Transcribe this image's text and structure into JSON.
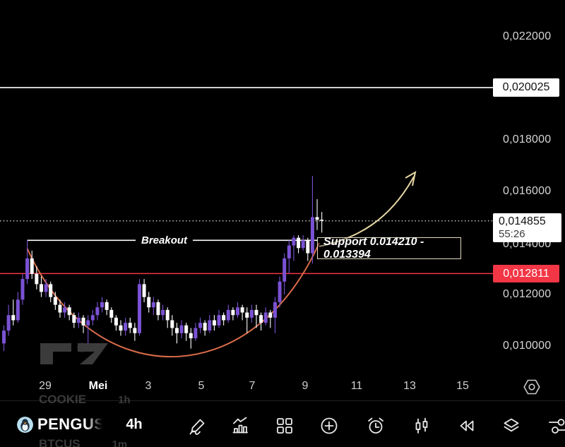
{
  "chart_data": {
    "type": "candlestick",
    "symbol": "PENGU",
    "timeframe": "4h",
    "y_axis": {
      "ticks": [
        "0,022000",
        "0,018000",
        "0,016000",
        "0,014000",
        "0,012000",
        "0,010000"
      ],
      "visible_range": [
        0.0098,
        0.0225
      ]
    },
    "x_axis": {
      "ticks": [
        "29",
        "Mei",
        "3",
        "5",
        "7",
        "9",
        "11",
        "13",
        "15"
      ],
      "bold_tick": "Mei"
    },
    "candles": [
      [
        0.0101,
        0.0108,
        0.0098,
        0.0106
      ],
      [
        0.0106,
        0.0116,
        0.0104,
        0.0112
      ],
      [
        0.0112,
        0.0118,
        0.0108,
        0.011
      ],
      [
        0.011,
        0.0121,
        0.0109,
        0.0118
      ],
      [
        0.0118,
        0.0128,
        0.0116,
        0.0126
      ],
      [
        0.0126,
        0.0141,
        0.0124,
        0.0134
      ],
      [
        0.0134,
        0.0137,
        0.0126,
        0.0128
      ],
      [
        0.0128,
        0.0131,
        0.0122,
        0.0124
      ],
      [
        0.0124,
        0.0127,
        0.0119,
        0.0121
      ],
      [
        0.0121,
        0.0126,
        0.0119,
        0.0124
      ],
      [
        0.0124,
        0.0125,
        0.0117,
        0.0119
      ],
      [
        0.0119,
        0.0121,
        0.0114,
        0.0116
      ],
      [
        0.0116,
        0.0118,
        0.0111,
        0.0113
      ],
      [
        0.0113,
        0.0117,
        0.0111,
        0.0115
      ],
      [
        0.0115,
        0.0116,
        0.011,
        0.0112
      ],
      [
        0.0112,
        0.0113,
        0.0107,
        0.0109
      ],
      [
        0.0109,
        0.0113,
        0.0107,
        0.0111
      ],
      [
        0.0111,
        0.0112,
        0.0105,
        0.0108
      ],
      [
        0.0108,
        0.0112,
        0.01,
        0.011
      ],
      [
        0.011,
        0.0114,
        0.0108,
        0.0112
      ],
      [
        0.0112,
        0.0117,
        0.011,
        0.0115
      ],
      [
        0.0115,
        0.0119,
        0.0113,
        0.0117
      ],
      [
        0.0117,
        0.0118,
        0.0112,
        0.0114
      ],
      [
        0.0114,
        0.0115,
        0.0109,
        0.0111
      ],
      [
        0.0111,
        0.0112,
        0.0106,
        0.0108
      ],
      [
        0.0108,
        0.011,
        0.0104,
        0.0106
      ],
      [
        0.0106,
        0.0111,
        0.0104,
        0.0109
      ],
      [
        0.0109,
        0.0111,
        0.0105,
        0.0107
      ],
      [
        0.0107,
        0.0109,
        0.0102,
        0.0105
      ],
      [
        0.0105,
        0.0126,
        0.0104,
        0.0124
      ],
      [
        0.0124,
        0.0126,
        0.0117,
        0.0119
      ],
      [
        0.0119,
        0.0121,
        0.0113,
        0.0115
      ],
      [
        0.0115,
        0.0119,
        0.0112,
        0.0117
      ],
      [
        0.0117,
        0.0118,
        0.011,
        0.0112
      ],
      [
        0.0112,
        0.0116,
        0.011,
        0.0114
      ],
      [
        0.0114,
        0.0115,
        0.0107,
        0.011
      ],
      [
        0.011,
        0.0112,
        0.0104,
        0.0107
      ],
      [
        0.0107,
        0.0109,
        0.0101,
        0.0105
      ],
      [
        0.0105,
        0.011,
        0.0103,
        0.0108
      ],
      [
        0.0108,
        0.0109,
        0.0102,
        0.0105
      ],
      [
        0.0105,
        0.0107,
        0.0099,
        0.0103
      ],
      [
        0.0103,
        0.0109,
        0.0102,
        0.0107
      ],
      [
        0.0107,
        0.0111,
        0.0105,
        0.0109
      ],
      [
        0.0109,
        0.011,
        0.0104,
        0.0106
      ],
      [
        0.0106,
        0.0112,
        0.0105,
        0.011
      ],
      [
        0.011,
        0.0112,
        0.0106,
        0.0108
      ],
      [
        0.0108,
        0.0114,
        0.0107,
        0.0112
      ],
      [
        0.0112,
        0.0113,
        0.0108,
        0.011
      ],
      [
        0.011,
        0.0116,
        0.0109,
        0.0114
      ],
      [
        0.0114,
        0.0115,
        0.011,
        0.0112
      ],
      [
        0.0112,
        0.0117,
        0.0111,
        0.0115
      ],
      [
        0.0115,
        0.0116,
        0.011,
        0.0113
      ],
      [
        0.0113,
        0.0115,
        0.0105,
        0.0111
      ],
      [
        0.0111,
        0.0116,
        0.0109,
        0.0114
      ],
      [
        0.0114,
        0.0116,
        0.0107,
        0.0112
      ],
      [
        0.0112,
        0.0113,
        0.0106,
        0.0109
      ],
      [
        0.0109,
        0.0115,
        0.0108,
        0.0113
      ],
      [
        0.0113,
        0.0114,
        0.0107,
        0.0111
      ],
      [
        0.0111,
        0.0119,
        0.0105,
        0.0117
      ],
      [
        0.0117,
        0.0127,
        0.0115,
        0.0125
      ],
      [
        0.0125,
        0.0136,
        0.012,
        0.0134
      ],
      [
        0.0134,
        0.0141,
        0.0128,
        0.0139
      ],
      [
        0.0139,
        0.0143,
        0.0133,
        0.0142
      ],
      [
        0.0142,
        0.0143,
        0.0136,
        0.0138
      ],
      [
        0.0138,
        0.0143,
        0.0137,
        0.0141
      ],
      [
        0.0141,
        0.0142,
        0.0133,
        0.0136
      ],
      [
        0.0136,
        0.0166,
        0.0132,
        0.015
      ],
      [
        0.015,
        0.0157,
        0.0145,
        0.0149
      ],
      [
        0.0149,
        0.0152,
        0.0144,
        0.014855
      ]
    ],
    "levels": {
      "alert_line": {
        "price": 0.020025,
        "label": "0,020025"
      },
      "last_price": {
        "price": 0.014855,
        "label": "0,014855",
        "countdown": "55:26"
      },
      "horizontal_red": {
        "price": 0.012811,
        "label": "0,012811"
      },
      "breakout": {
        "price": 0.0141,
        "label": "Breakout",
        "from_candle": 5,
        "to_candle": 67
      }
    },
    "annotations": {
      "support_zone": {
        "label": "Support 0.014210 - 0.013394"
      },
      "projection_arrow": "curved-up-arrow",
      "cup_curve": "rounded-bottom-arc"
    }
  },
  "colors": {
    "background": "#000000",
    "candle_up": "#7a52d4",
    "candle_down": "#ffffff",
    "cup_curve": "#d96c4a",
    "arrow": "#e6d6a3",
    "red_line": "#f23645",
    "alert_line": "#ffffff",
    "current_price_line": "#ffffff",
    "support_border": "#eee6c8"
  },
  "symbol_carousel": {
    "items": [
      {
        "symbol": "COOKIE",
        "timeframe": "1h",
        "active": false
      },
      {
        "symbol": "PENGUS",
        "timeframe": "4h",
        "active": true
      },
      {
        "symbol": "BTCUS",
        "timeframe": "1m",
        "active": false
      }
    ]
  },
  "toolbar": {
    "icons": [
      "draw",
      "indicators",
      "layout-grid",
      "add",
      "alert-clock",
      "chart-type-candles",
      "replay-rewind",
      "layers",
      "settings-sliders"
    ]
  },
  "time_axis_button": "hexagon-target"
}
